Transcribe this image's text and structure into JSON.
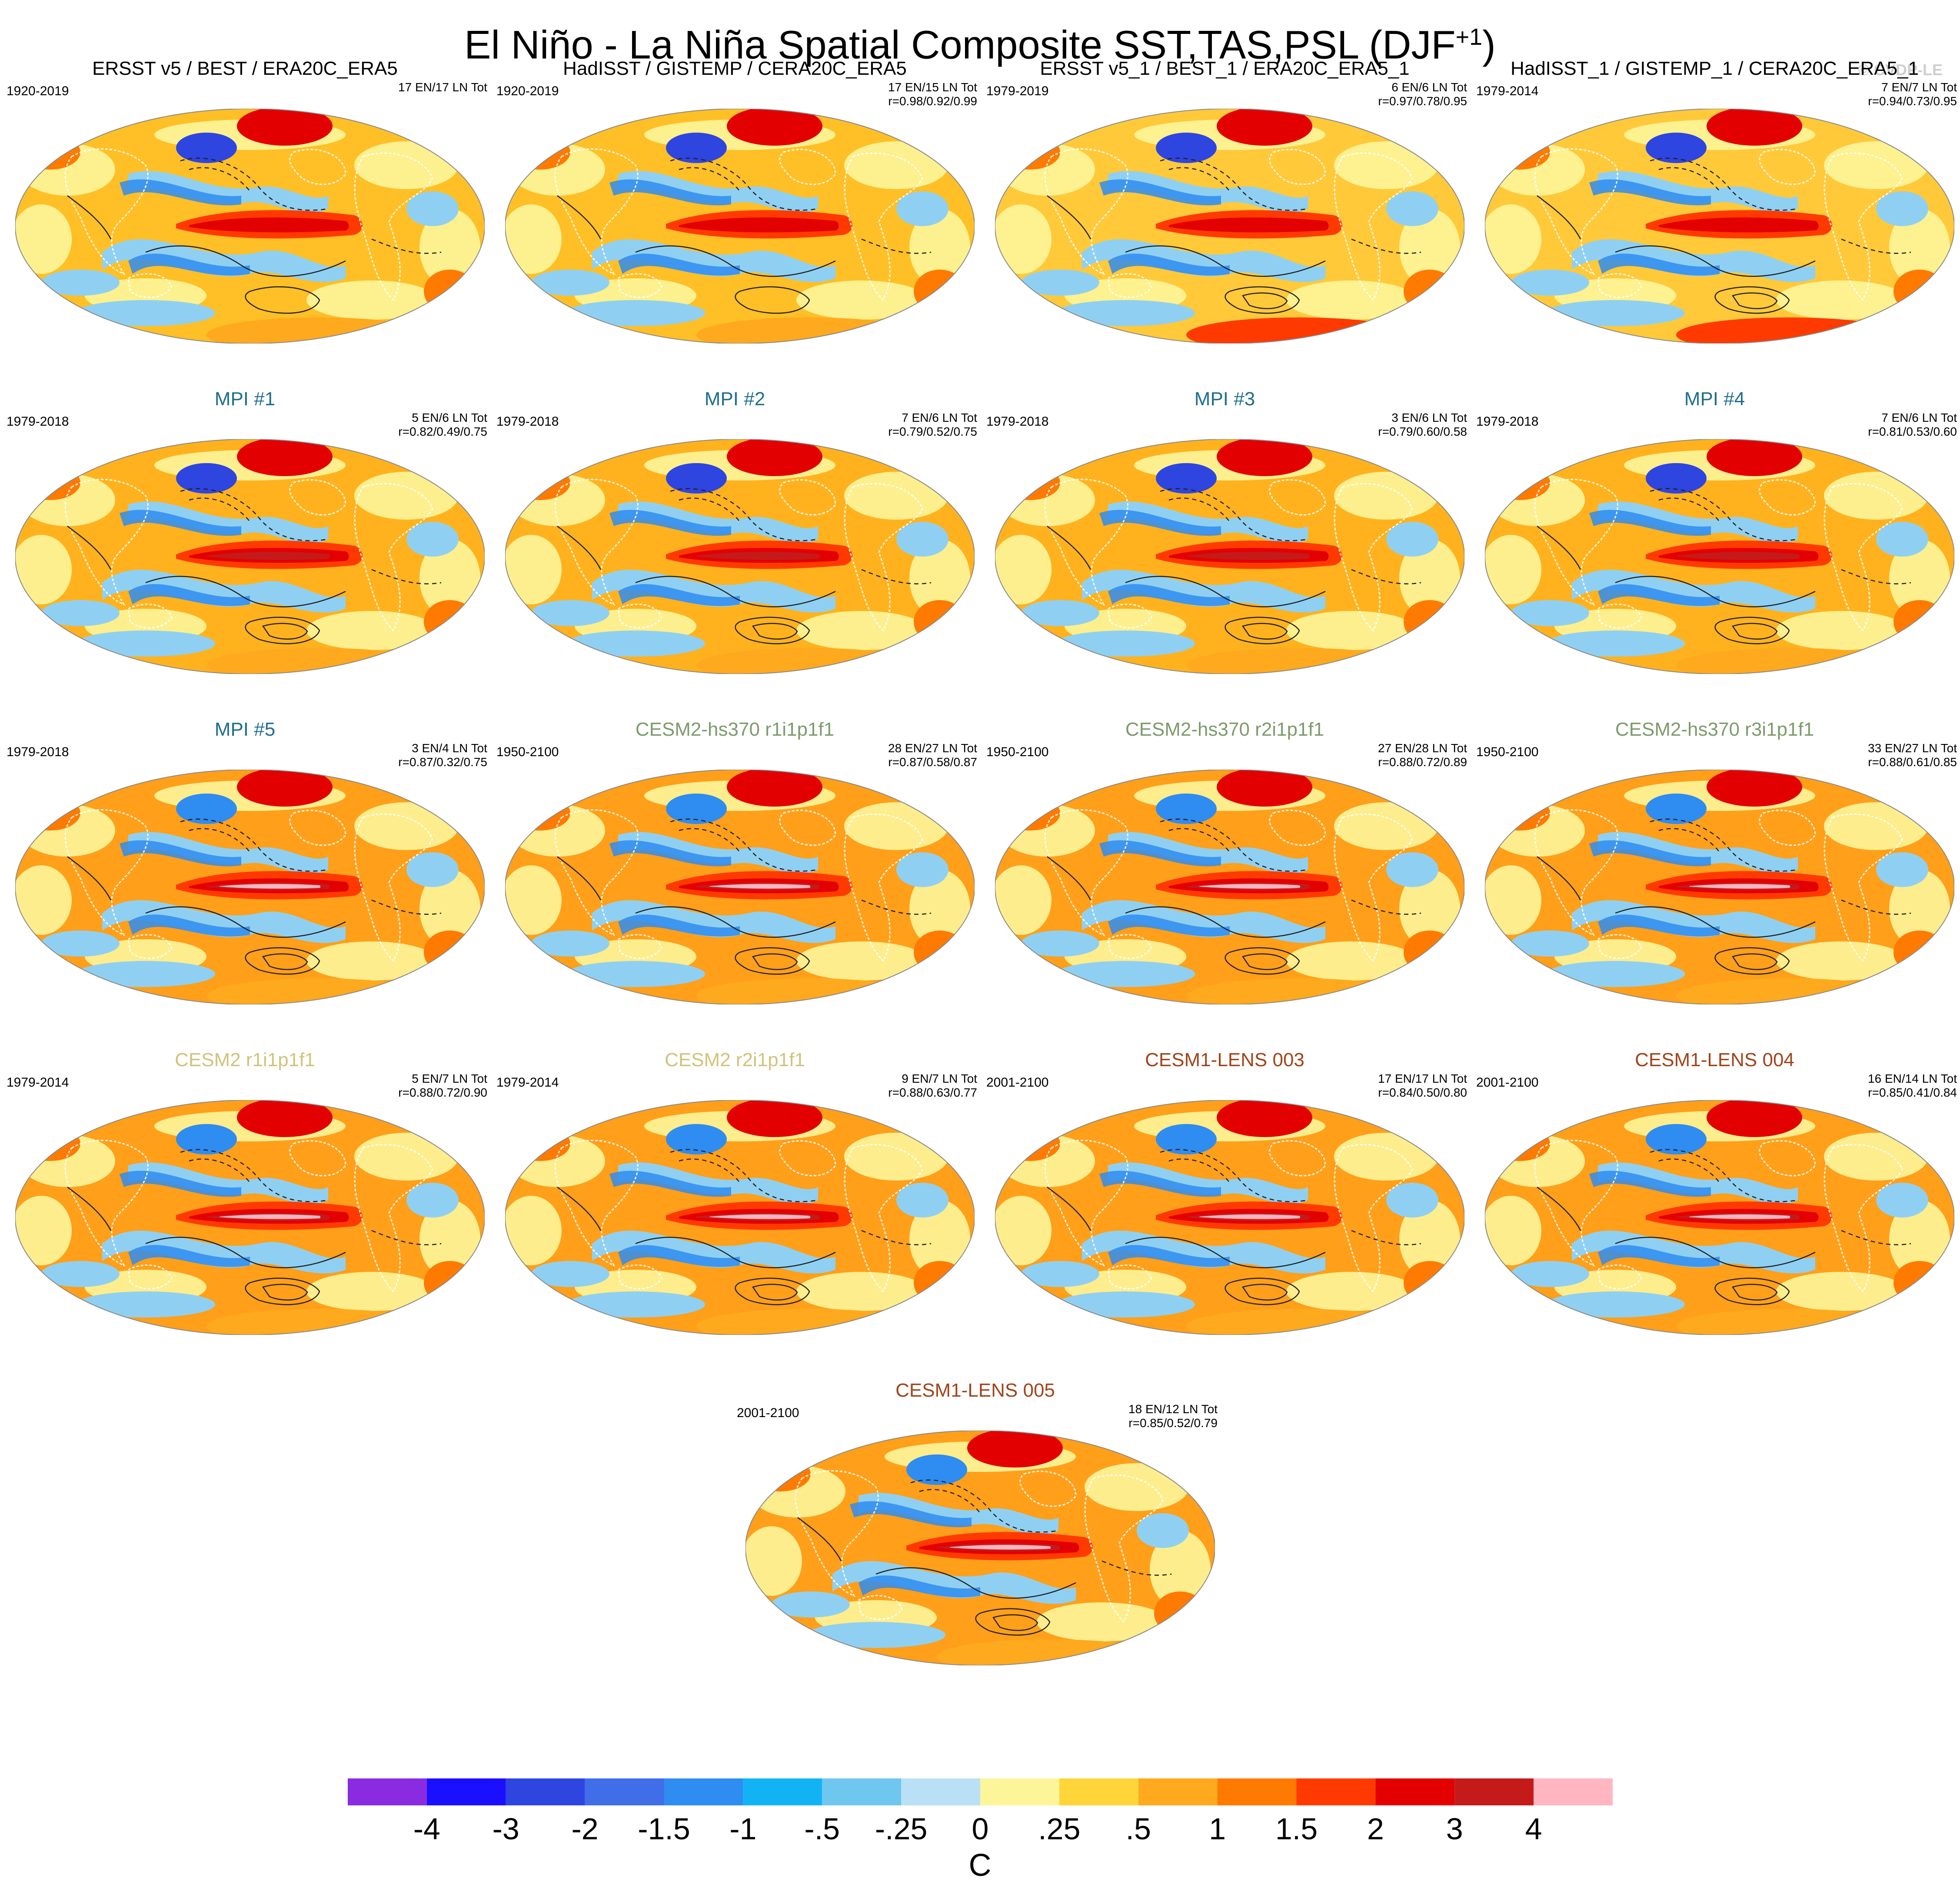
{
  "header": {
    "title_main": "El Niño - La Niña Spatial Composite SST,TAS,PSL (DJF",
    "title_sup": "+1",
    "title_close": ")",
    "copyright": "© CVDP-LE"
  },
  "colors": {
    "title_obs": "#000000",
    "title_mpi": "#1f6e8c",
    "title_cesm2_hs370": "#7e9b6b",
    "title_cesm2": "#d2c27a",
    "title_cesm1": "#a0441a"
  },
  "panels": [
    {
      "title": "ERSST v5 / BEST / ERA20C_ERA5",
      "period": "1920-2019",
      "stats1": "17 EN/17 LN Tot",
      "stats2": "",
      "title_color": "#000000",
      "style": 0
    },
    {
      "title": "HadISST / GISTEMP / CERA20C_ERA5",
      "period": "1920-2019",
      "stats1": "17 EN/15 LN Tot",
      "stats2": "r=0.98/0.92/0.99",
      "title_color": "#000000",
      "style": 0
    },
    {
      "title": "ERSST v5_1 / BEST_1 / ERA20C_ERA5_1",
      "period": "1979-2019",
      "stats1": "6 EN/6 LN Tot",
      "stats2": "r=0.97/0.78/0.95",
      "title_color": "#000000",
      "style": 1
    },
    {
      "title": "HadISST_1 / GISTEMP_1 / CERA20C_ERA5_1",
      "period": "1979-2014",
      "stats1": "7 EN/7 LN Tot",
      "stats2": "r=0.94/0.73/0.95",
      "title_color": "#000000",
      "style": 1
    },
    {
      "title": "MPI #1",
      "period": "1979-2018",
      "stats1": "5 EN/6 LN Tot",
      "stats2": "r=0.82/0.49/0.75",
      "title_color": "#1f6e8c",
      "style": 2
    },
    {
      "title": "MPI #2",
      "period": "1979-2018",
      "stats1": "7 EN/6 LN Tot",
      "stats2": "r=0.79/0.52/0.75",
      "title_color": "#1f6e8c",
      "style": 2
    },
    {
      "title": "MPI #3",
      "period": "1979-2018",
      "stats1": "3 EN/6 LN Tot",
      "stats2": "r=0.79/0.60/0.58",
      "title_color": "#1f6e8c",
      "style": 2
    },
    {
      "title": "MPI #4",
      "period": "1979-2018",
      "stats1": "7 EN/6 LN Tot",
      "stats2": "r=0.81/0.53/0.60",
      "title_color": "#1f6e8c",
      "style": 2
    },
    {
      "title": "MPI #5",
      "period": "1979-2018",
      "stats1": "3 EN/4 LN Tot",
      "stats2": "r=0.87/0.32/0.75",
      "title_color": "#1f6e8c",
      "style": 3
    },
    {
      "title": "CESM2-hs370 r1i1p1f1",
      "period": "1950-2100",
      "stats1": "28 EN/27 LN Tot",
      "stats2": "r=0.87/0.58/0.87",
      "title_color": "#7e9b6b",
      "style": 3
    },
    {
      "title": "CESM2-hs370 r2i1p1f1",
      "period": "1950-2100",
      "stats1": "27 EN/28 LN Tot",
      "stats2": "r=0.88/0.72/0.89",
      "title_color": "#7e9b6b",
      "style": 3
    },
    {
      "title": "CESM2-hs370 r3i1p1f1",
      "period": "1950-2100",
      "stats1": "33 EN/27 LN Tot",
      "stats2": "r=0.88/0.61/0.85",
      "title_color": "#7e9b6b",
      "style": 3
    },
    {
      "title": "CESM2 r1i1p1f1",
      "period": "1979-2014",
      "stats1": "5 EN/7 LN Tot",
      "stats2": "r=0.88/0.72/0.90",
      "title_color": "#d2c27a",
      "style": 3
    },
    {
      "title": "CESM2 r2i1p1f1",
      "period": "1979-2014",
      "stats1": "9 EN/7 LN Tot",
      "stats2": "r=0.88/0.63/0.77",
      "title_color": "#d2c27a",
      "style": 3
    },
    {
      "title": "CESM1-LENS 003",
      "period": "2001-2100",
      "stats1": "17 EN/17 LN Tot",
      "stats2": "r=0.84/0.50/0.80",
      "title_color": "#a0441a",
      "style": 3
    },
    {
      "title": "CESM1-LENS 004",
      "period": "2001-2100",
      "stats1": "16 EN/14 LN Tot",
      "stats2": "r=0.85/0.41/0.84",
      "title_color": "#a0441a",
      "style": 3
    },
    {
      "title": "CESM1-LENS 005",
      "period": "2001-2100",
      "stats1": "18 EN/12 LN Tot",
      "stats2": "r=0.85/0.52/0.79",
      "title_color": "#a0441a",
      "style": 3
    }
  ],
  "colorbar": {
    "labels": [
      "-4",
      "-3",
      "-2",
      "-1.5",
      "-1",
      "-.5",
      "-.25",
      "0",
      ".25",
      ".5",
      "1",
      "1.5",
      "2",
      "3",
      "4"
    ],
    "colors": [
      "#8a2be2",
      "#1a0fff",
      "#2e45e0",
      "#3f6ee8",
      "#2f8cf0",
      "#12b3f5",
      "#6fc6ef",
      "#b9e0f5",
      "#fdf59a",
      "#ffd53a",
      "#ffa91e",
      "#ff7a00",
      "#ff3a00",
      "#e30000",
      "#c51a1a",
      "#ffb6c1"
    ],
    "units": "C"
  }
}
